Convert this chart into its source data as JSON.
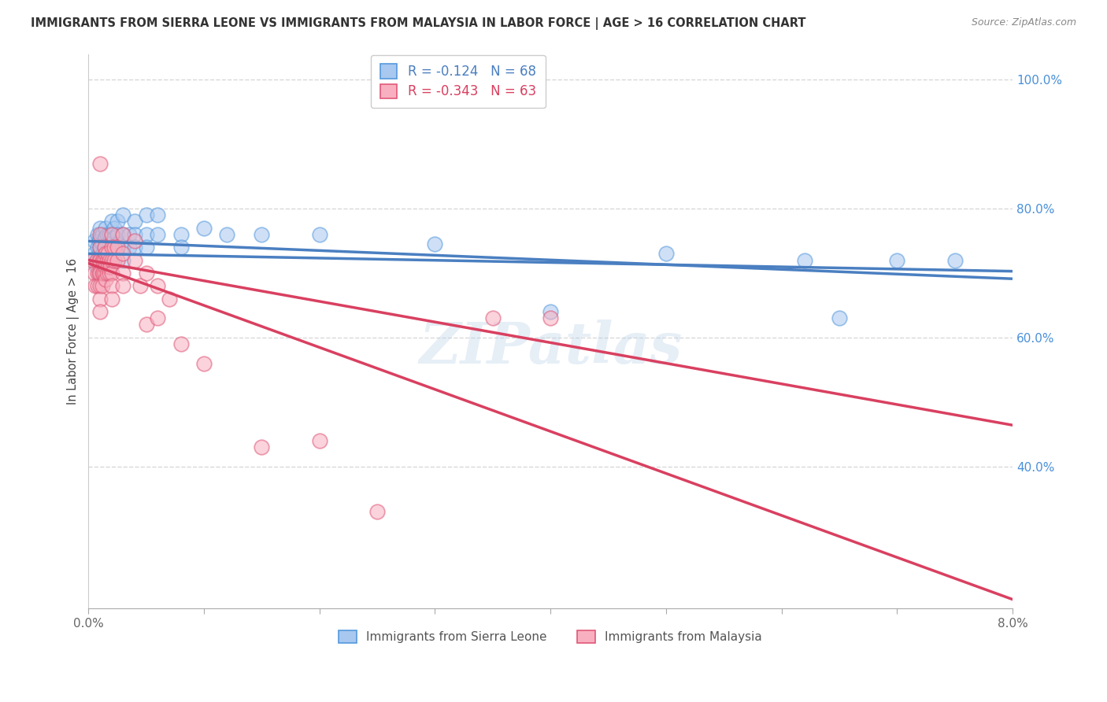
{
  "title": "IMMIGRANTS FROM SIERRA LEONE VS IMMIGRANTS FROM MALAYSIA IN LABOR FORCE | AGE > 16 CORRELATION CHART",
  "source": "Source: ZipAtlas.com",
  "ylabel": "In Labor Force | Age > 16",
  "xmin": 0.0,
  "xmax": 0.08,
  "ymin": 0.18,
  "ymax": 1.04,
  "yticks": [
    0.4,
    0.6,
    0.8,
    1.0
  ],
  "ytick_labels": [
    "40.0%",
    "60.0%",
    "80.0%",
    "100.0%"
  ],
  "xticks": [
    0.0,
    0.01,
    0.02,
    0.03,
    0.04,
    0.05,
    0.06,
    0.07,
    0.08
  ],
  "xtick_labels": [
    "0.0%",
    "",
    "",
    "",
    "",
    "",
    "",
    "",
    "8.0%"
  ],
  "sierra_leone_color": "#a8c8f0",
  "sierra_leone_edge": "#5599dd",
  "malaysia_color": "#f8b0c0",
  "malaysia_edge": "#e05878",
  "sierra_leone_line_color": "#4a7fc1",
  "malaysia_line_color": "#d94060",
  "R_sl": -0.124,
  "N_sl": 68,
  "R_my": -0.343,
  "N_my": 63,
  "label_sl": "Immigrants from Sierra Leone",
  "label_my": "Immigrants from Malaysia",
  "watermark": "ZIPatlas",
  "background_color": "#ffffff",
  "grid_color": "#d8d8d8",
  "sierra_leone_points": [
    [
      0.0005,
      0.75
    ],
    [
      0.0005,
      0.73
    ],
    [
      0.0007,
      0.72
    ],
    [
      0.0007,
      0.71
    ],
    [
      0.0008,
      0.76
    ],
    [
      0.0008,
      0.74
    ],
    [
      0.0009,
      0.75
    ],
    [
      0.0009,
      0.73
    ],
    [
      0.001,
      0.77
    ],
    [
      0.001,
      0.755
    ],
    [
      0.001,
      0.74
    ],
    [
      0.001,
      0.725
    ],
    [
      0.001,
      0.71
    ],
    [
      0.001,
      0.695
    ],
    [
      0.0012,
      0.76
    ],
    [
      0.0012,
      0.745
    ],
    [
      0.0013,
      0.73
    ],
    [
      0.0013,
      0.715
    ],
    [
      0.0014,
      0.755
    ],
    [
      0.0014,
      0.74
    ],
    [
      0.0015,
      0.77
    ],
    [
      0.0015,
      0.755
    ],
    [
      0.0015,
      0.74
    ],
    [
      0.0015,
      0.725
    ],
    [
      0.0016,
      0.76
    ],
    [
      0.0016,
      0.745
    ],
    [
      0.0017,
      0.735
    ],
    [
      0.0017,
      0.72
    ],
    [
      0.0018,
      0.76
    ],
    [
      0.0018,
      0.745
    ],
    [
      0.0019,
      0.73
    ],
    [
      0.002,
      0.78
    ],
    [
      0.002,
      0.76
    ],
    [
      0.002,
      0.745
    ],
    [
      0.002,
      0.73
    ],
    [
      0.002,
      0.715
    ],
    [
      0.0022,
      0.77
    ],
    [
      0.0022,
      0.755
    ],
    [
      0.0025,
      0.78
    ],
    [
      0.0025,
      0.76
    ],
    [
      0.0025,
      0.745
    ],
    [
      0.003,
      0.79
    ],
    [
      0.003,
      0.76
    ],
    [
      0.003,
      0.74
    ],
    [
      0.003,
      0.72
    ],
    [
      0.0035,
      0.76
    ],
    [
      0.0035,
      0.74
    ],
    [
      0.004,
      0.78
    ],
    [
      0.004,
      0.76
    ],
    [
      0.004,
      0.74
    ],
    [
      0.005,
      0.79
    ],
    [
      0.005,
      0.76
    ],
    [
      0.005,
      0.74
    ],
    [
      0.006,
      0.79
    ],
    [
      0.006,
      0.76
    ],
    [
      0.008,
      0.76
    ],
    [
      0.008,
      0.74
    ],
    [
      0.01,
      0.77
    ],
    [
      0.012,
      0.76
    ],
    [
      0.015,
      0.76
    ],
    [
      0.02,
      0.76
    ],
    [
      0.03,
      0.745
    ],
    [
      0.04,
      0.64
    ],
    [
      0.05,
      0.73
    ],
    [
      0.062,
      0.72
    ],
    [
      0.065,
      0.63
    ],
    [
      0.07,
      0.72
    ],
    [
      0.075,
      0.72
    ]
  ],
  "malaysia_points": [
    [
      0.0004,
      0.72
    ],
    [
      0.0005,
      0.7
    ],
    [
      0.0006,
      0.68
    ],
    [
      0.0007,
      0.72
    ],
    [
      0.0008,
      0.7
    ],
    [
      0.0008,
      0.68
    ],
    [
      0.0009,
      0.72
    ],
    [
      0.0009,
      0.7
    ],
    [
      0.001,
      0.87
    ],
    [
      0.001,
      0.76
    ],
    [
      0.001,
      0.74
    ],
    [
      0.001,
      0.72
    ],
    [
      0.001,
      0.7
    ],
    [
      0.001,
      0.68
    ],
    [
      0.001,
      0.66
    ],
    [
      0.001,
      0.64
    ],
    [
      0.0012,
      0.72
    ],
    [
      0.0012,
      0.7
    ],
    [
      0.0012,
      0.68
    ],
    [
      0.0013,
      0.72
    ],
    [
      0.0013,
      0.7
    ],
    [
      0.0014,
      0.74
    ],
    [
      0.0014,
      0.72
    ],
    [
      0.0014,
      0.7
    ],
    [
      0.0015,
      0.73
    ],
    [
      0.0015,
      0.71
    ],
    [
      0.0015,
      0.69
    ],
    [
      0.0016,
      0.72
    ],
    [
      0.0016,
      0.7
    ],
    [
      0.0017,
      0.73
    ],
    [
      0.0017,
      0.71
    ],
    [
      0.0018,
      0.72
    ],
    [
      0.0018,
      0.7
    ],
    [
      0.0019,
      0.71
    ],
    [
      0.002,
      0.76
    ],
    [
      0.002,
      0.74
    ],
    [
      0.002,
      0.72
    ],
    [
      0.002,
      0.7
    ],
    [
      0.002,
      0.68
    ],
    [
      0.002,
      0.66
    ],
    [
      0.0022,
      0.74
    ],
    [
      0.0022,
      0.72
    ],
    [
      0.0025,
      0.74
    ],
    [
      0.0025,
      0.72
    ],
    [
      0.003,
      0.76
    ],
    [
      0.003,
      0.73
    ],
    [
      0.003,
      0.7
    ],
    [
      0.003,
      0.68
    ],
    [
      0.004,
      0.75
    ],
    [
      0.004,
      0.72
    ],
    [
      0.0045,
      0.68
    ],
    [
      0.005,
      0.7
    ],
    [
      0.005,
      0.62
    ],
    [
      0.006,
      0.68
    ],
    [
      0.006,
      0.63
    ],
    [
      0.007,
      0.66
    ],
    [
      0.008,
      0.59
    ],
    [
      0.01,
      0.56
    ],
    [
      0.015,
      0.43
    ],
    [
      0.02,
      0.44
    ],
    [
      0.025,
      0.33
    ],
    [
      0.035,
      0.63
    ],
    [
      0.04,
      0.63
    ]
  ]
}
